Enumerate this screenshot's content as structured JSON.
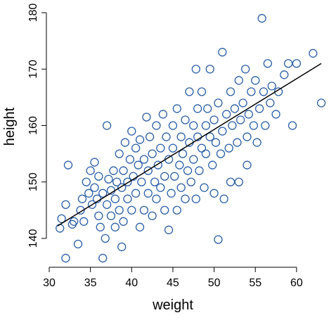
{
  "chart_data": {
    "type": "scatter",
    "xlabel": "weight",
    "ylabel": "height",
    "xlim": [
      29.6,
      63.7
    ],
    "ylim": [
      135.3,
      181.2
    ],
    "xticks": [
      30,
      35,
      40,
      45,
      50,
      55,
      60
    ],
    "yticks": [
      140,
      150,
      160,
      170,
      180
    ],
    "color": "#2b5fa6",
    "line_color": "#000000",
    "x": [
      31.3,
      31.5,
      32,
      32,
      32.3,
      32.8,
      33,
      33.5,
      33.8,
      34,
      34.2,
      34.5,
      34.8,
      35,
      35.2,
      35.5,
      35.5,
      35.8,
      36,
      36,
      36.2,
      36.5,
      36.5,
      36.8,
      37,
      37,
      37.2,
      37.5,
      37.5,
      37.8,
      38,
      38,
      38.2,
      38.5,
      38.5,
      38.8,
      38.8,
      39,
      39,
      39.2,
      39.5,
      39.5,
      39.8,
      40,
      40,
      40.2,
      40.5,
      40.5,
      40.8,
      41,
      41,
      41.2,
      41.5,
      41.5,
      41.8,
      42,
      42,
      42.2,
      42.5,
      42.5,
      42.8,
      43,
      43,
      43.2,
      43.5,
      43.5,
      43.8,
      44,
      44,
      44.2,
      44.5,
      44.5,
      44.8,
      45,
      45,
      45.2,
      45.5,
      45.5,
      45.8,
      46,
      46,
      46.2,
      46.5,
      46.5,
      46.8,
      47,
      47,
      47.2,
      47.5,
      47.5,
      47.8,
      47.8,
      48,
      48,
      48.2,
      48.5,
      48.5,
      48.8,
      49,
      49,
      49.2,
      49.5,
      49.5,
      49.8,
      50,
      50,
      50.2,
      50.5,
      50.5,
      50.8,
      51,
      51,
      51.2,
      51.5,
      51.8,
      52,
      52,
      52.2,
      52.5,
      52.8,
      53,
      53,
      53.2,
      53.5,
      53.8,
      54,
      54,
      54.2,
      54.5,
      54.8,
      55,
      55.2,
      55.5,
      55.8,
      56,
      56.2,
      56.5,
      56.8,
      57,
      57.5,
      57.8,
      58.5,
      59,
      59.5,
      60,
      62,
      63
    ],
    "values": [
      141.8,
      143.5,
      146,
      136.5,
      153,
      142.5,
      143,
      139,
      145,
      147,
      143,
      150,
      148,
      152,
      146,
      149,
      153.5,
      147,
      144,
      151,
      142,
      136.5,
      148,
      140,
      160,
      146,
      150.5,
      144,
      148.5,
      152,
      142,
      147,
      150,
      155,
      145,
      138.5,
      149,
      152,
      143,
      157,
      147,
      150,
      154,
      145,
      159,
      151,
      148,
      156,
      153,
      142,
      157.5,
      150,
      145,
      154,
      161.5,
      148,
      152,
      158,
      144,
      155,
      150,
      147,
      160,
      153,
      156,
      149,
      162,
      145,
      151,
      158,
      141.5,
      154,
      148,
      156,
      160,
      151,
      145,
      163,
      153,
      149,
      158,
      155,
      147,
      161,
      152,
      157,
      166,
      150,
      154,
      160,
      147,
      170,
      158,
      163,
      152,
      156,
      166,
      149,
      160,
      155,
      163,
      158,
      170,
      153,
      161,
      148,
      157,
      139.8,
      164,
      155,
      173,
      159,
      147,
      162,
      156,
      166,
      150,
      160,
      163,
      157,
      168,
      150,
      161,
      164,
      170,
      158,
      153,
      162,
      166,
      160,
      168,
      157,
      163,
      179,
      166,
      160,
      171,
      164,
      167,
      162,
      166,
      169,
      171,
      160,
      171,
      172.8,
      164
    ],
    "fit": {
      "x": [
        31,
        63
      ],
      "y": [
        142.2,
        171
      ]
    }
  }
}
